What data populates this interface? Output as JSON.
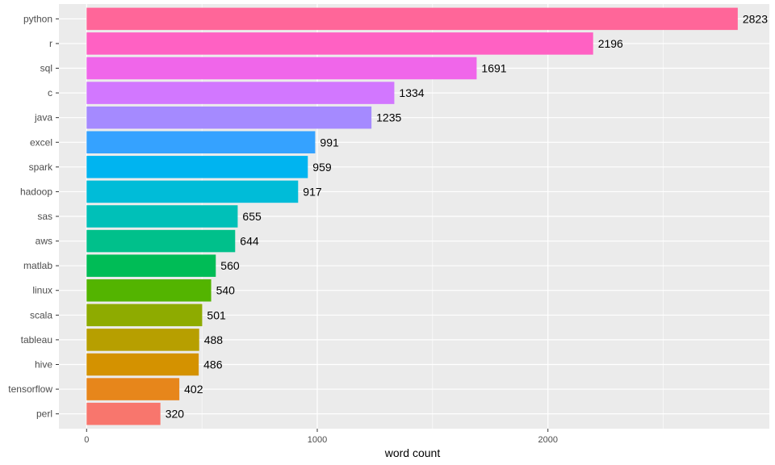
{
  "chart_data": {
    "type": "bar",
    "orientation": "horizontal",
    "xlabel": "word count",
    "ylabel": "",
    "xlim": [
      -120,
      2960
    ],
    "x_ticks": [
      0,
      1000,
      2000
    ],
    "x_tick_labels": [
      "0",
      "1000",
      "2000"
    ],
    "grid": true,
    "legend": "none",
    "panel_background": "#EBEBEB",
    "categories": [
      "python",
      "r",
      "sql",
      "c",
      "java",
      "excel",
      "spark",
      "hadoop",
      "sas",
      "aws",
      "matlab",
      "linux",
      "scala",
      "tableau",
      "hive",
      "tensorflow",
      "perl"
    ],
    "values": [
      2823,
      2196,
      1691,
      1334,
      1235,
      991,
      959,
      917,
      655,
      644,
      560,
      540,
      501,
      488,
      486,
      402,
      320
    ],
    "value_labels": [
      "2823",
      "2196",
      "1691",
      "1334",
      "1235",
      "991",
      "959",
      "917",
      "655",
      "644",
      "560",
      "540",
      "501",
      "488",
      "486",
      "402",
      "320"
    ],
    "colors": [
      "#FF6699",
      "#FF61C3",
      "#F066EA",
      "#D277FF",
      "#A58AFF",
      "#35A2FF",
      "#00B4F0",
      "#00BCD8",
      "#00C0B8",
      "#00C08B",
      "#00BC56",
      "#53B400",
      "#8EAB00",
      "#B79F00",
      "#D49200",
      "#E7861B",
      "#F8766D"
    ]
  }
}
